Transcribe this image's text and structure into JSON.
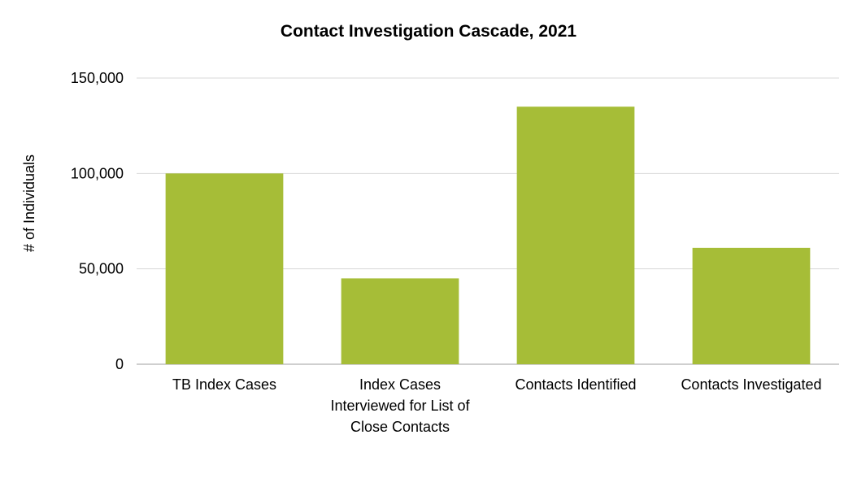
{
  "chart_data": {
    "type": "bar",
    "title": "Contact Investigation Cascade, 2021",
    "xlabel": "",
    "ylabel": "# of Individuals",
    "categories": [
      [
        "TB Index Cases"
      ],
      [
        "Index Cases",
        "Interviewed for List of",
        "Close Contacts"
      ],
      [
        "Contacts Identified"
      ],
      [
        "Contacts Investigated"
      ]
    ],
    "values": [
      100000,
      45000,
      135000,
      61000
    ],
    "ylim": [
      0,
      150000
    ],
    "yticks": [
      0,
      50000,
      100000,
      150000
    ],
    "ytick_labels": [
      "0",
      "50,000",
      "100,000",
      "150,000"
    ],
    "grid": true,
    "legend": "none",
    "colors": {
      "bar": "#a6bd37",
      "grid": "#d9d9d9",
      "axis": "#bfbfbf"
    }
  }
}
